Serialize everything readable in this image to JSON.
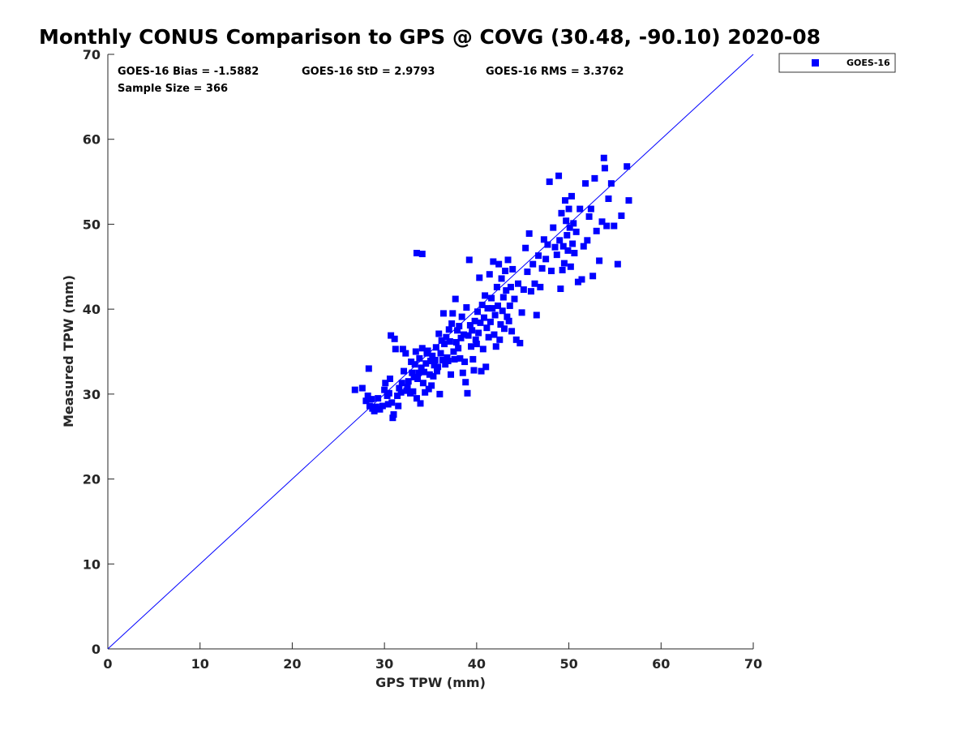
{
  "chart_data": {
    "type": "scatter",
    "title": "Monthly CONUS Comparison to GPS @ COVG (30.48, -90.10) 2020-08",
    "xlabel": "GPS TPW (mm)",
    "ylabel": "Measured TPW (mm)",
    "xlim": [
      0,
      70
    ],
    "ylim": [
      0,
      70
    ],
    "x_ticks": [
      "0",
      "10",
      "20",
      "30",
      "40",
      "50",
      "60",
      "70"
    ],
    "y_ticks": [
      "0",
      "10",
      "20",
      "30",
      "40",
      "50",
      "60",
      "70"
    ],
    "grid": false,
    "legend_position": "top-right",
    "reference_line": {
      "type": "one-to-one",
      "from": [
        0,
        0
      ],
      "to": [
        70,
        70
      ],
      "color": "#0000ff"
    },
    "stats": {
      "bias": "GOES-16 Bias = -1.5882",
      "std": "GOES-16 StD = 2.9793",
      "rms": "GOES-16 RMS = 3.3762",
      "sample_size": "Sample Size = 366"
    },
    "series": [
      {
        "name": "GOES-16",
        "color": "#0000ff",
        "marker": "square",
        "points": [
          [
            26.8,
            30.5
          ],
          [
            27.6,
            30.7
          ],
          [
            28.0,
            29.2
          ],
          [
            28.2,
            29.8
          ],
          [
            28.3,
            33.0
          ],
          [
            28.4,
            28.6
          ],
          [
            28.6,
            29.4
          ],
          [
            28.7,
            28.3
          ],
          [
            28.9,
            28.0
          ],
          [
            29.1,
            28.5
          ],
          [
            29.3,
            29.5
          ],
          [
            29.5,
            28.2
          ],
          [
            29.8,
            28.6
          ],
          [
            30.0,
            30.5
          ],
          [
            30.1,
            31.3
          ],
          [
            30.3,
            29.8
          ],
          [
            30.4,
            28.8
          ],
          [
            30.5,
            30.1
          ],
          [
            30.6,
            31.8
          ],
          [
            30.8,
            29.0
          ],
          [
            30.9,
            27.2
          ],
          [
            31.0,
            27.6
          ],
          [
            30.7,
            36.9
          ],
          [
            31.1,
            36.5
          ],
          [
            31.2,
            35.3
          ],
          [
            31.4,
            29.8
          ],
          [
            31.5,
            28.6
          ],
          [
            31.6,
            30.7
          ],
          [
            31.8,
            30.2
          ],
          [
            31.9,
            31.3
          ],
          [
            32.0,
            35.3
          ],
          [
            32.1,
            32.7
          ],
          [
            32.3,
            34.8
          ],
          [
            32.4,
            30.4
          ],
          [
            32.5,
            30.8
          ],
          [
            32.6,
            31.5
          ],
          [
            32.8,
            30.1
          ],
          [
            32.9,
            33.8
          ],
          [
            33.0,
            32.5
          ],
          [
            33.1,
            30.3
          ],
          [
            33.2,
            32.0
          ],
          [
            33.3,
            33.5
          ],
          [
            33.4,
            35.0
          ],
          [
            33.5,
            29.5
          ],
          [
            33.5,
            46.6
          ],
          [
            33.6,
            31.8
          ],
          [
            33.7,
            32.5
          ],
          [
            33.8,
            34.2
          ],
          [
            33.9,
            28.9
          ],
          [
            34.0,
            33.1
          ],
          [
            34.1,
            35.4
          ],
          [
            34.1,
            46.5
          ],
          [
            34.2,
            31.3
          ],
          [
            34.3,
            32.6
          ],
          [
            34.4,
            30.2
          ],
          [
            34.5,
            33.6
          ],
          [
            34.6,
            34.8
          ],
          [
            34.7,
            35.1
          ],
          [
            34.8,
            30.6
          ],
          [
            34.9,
            32.3
          ],
          [
            35.0,
            33.9
          ],
          [
            35.1,
            31.0
          ],
          [
            35.2,
            34.5
          ],
          [
            35.3,
            32.1
          ],
          [
            35.4,
            33.4
          ],
          [
            35.5,
            34.0
          ],
          [
            35.6,
            35.5
          ],
          [
            35.7,
            32.7
          ],
          [
            35.8,
            33.2
          ],
          [
            35.9,
            37.1
          ],
          [
            36.0,
            30.0
          ],
          [
            36.1,
            34.8
          ],
          [
            36.2,
            36.3
          ],
          [
            36.3,
            34.0
          ],
          [
            36.4,
            39.5
          ],
          [
            36.5,
            35.9
          ],
          [
            36.6,
            33.5
          ],
          [
            36.7,
            36.7
          ],
          [
            36.8,
            34.3
          ],
          [
            36.9,
            33.9
          ],
          [
            37.0,
            37.6
          ],
          [
            37.1,
            36.2
          ],
          [
            37.2,
            32.3
          ],
          [
            37.3,
            38.3
          ],
          [
            37.4,
            39.5
          ],
          [
            37.5,
            35.0
          ],
          [
            37.6,
            34.1
          ],
          [
            37.7,
            41.2
          ],
          [
            37.8,
            36.1
          ],
          [
            37.9,
            37.5
          ],
          [
            38.0,
            35.4
          ],
          [
            38.1,
            38.0
          ],
          [
            38.2,
            34.2
          ],
          [
            38.3,
            36.6
          ],
          [
            38.4,
            39.1
          ],
          [
            38.5,
            32.5
          ],
          [
            38.6,
            37.0
          ],
          [
            38.7,
            33.8
          ],
          [
            38.8,
            31.4
          ],
          [
            38.9,
            40.2
          ],
          [
            39.0,
            30.1
          ],
          [
            39.1,
            36.9
          ],
          [
            39.2,
            45.8
          ],
          [
            39.3,
            38.1
          ],
          [
            39.4,
            35.6
          ],
          [
            39.5,
            37.5
          ],
          [
            39.6,
            34.1
          ],
          [
            39.7,
            32.8
          ],
          [
            39.8,
            38.6
          ],
          [
            39.9,
            36.4
          ],
          [
            40.0,
            35.9
          ],
          [
            40.1,
            39.7
          ],
          [
            40.2,
            37.2
          ],
          [
            40.3,
            43.7
          ],
          [
            40.4,
            38.4
          ],
          [
            40.5,
            32.7
          ],
          [
            40.6,
            40.5
          ],
          [
            40.7,
            35.3
          ],
          [
            40.8,
            39.0
          ],
          [
            40.9,
            41.6
          ],
          [
            41.0,
            33.2
          ],
          [
            41.1,
            37.8
          ],
          [
            41.2,
            40.1
          ],
          [
            41.3,
            36.7
          ],
          [
            41.4,
            44.1
          ],
          [
            41.5,
            38.5
          ],
          [
            41.6,
            41.3
          ],
          [
            41.7,
            40.1
          ],
          [
            41.8,
            45.6
          ],
          [
            41.9,
            37.0
          ],
          [
            42.0,
            39.3
          ],
          [
            42.1,
            35.6
          ],
          [
            42.2,
            42.6
          ],
          [
            42.3,
            40.4
          ],
          [
            42.4,
            45.3
          ],
          [
            42.5,
            36.4
          ],
          [
            42.6,
            38.2
          ],
          [
            42.7,
            43.6
          ],
          [
            42.8,
            39.8
          ],
          [
            42.9,
            41.4
          ],
          [
            43.0,
            37.7
          ],
          [
            43.1,
            44.5
          ],
          [
            43.2,
            42.2
          ],
          [
            43.3,
            39.1
          ],
          [
            43.4,
            45.8
          ],
          [
            43.5,
            38.6
          ],
          [
            43.6,
            40.4
          ],
          [
            43.7,
            42.6
          ],
          [
            43.8,
            37.4
          ],
          [
            43.9,
            44.7
          ],
          [
            44.1,
            41.2
          ],
          [
            44.3,
            36.4
          ],
          [
            44.5,
            43.0
          ],
          [
            44.7,
            36.0
          ],
          [
            44.9,
            39.6
          ],
          [
            45.1,
            42.3
          ],
          [
            45.3,
            47.2
          ],
          [
            45.5,
            44.4
          ],
          [
            45.7,
            48.9
          ],
          [
            45.9,
            42.1
          ],
          [
            46.1,
            45.3
          ],
          [
            46.3,
            43.0
          ],
          [
            46.5,
            39.3
          ],
          [
            46.7,
            46.3
          ],
          [
            46.9,
            42.6
          ],
          [
            47.1,
            44.8
          ],
          [
            47.3,
            48.2
          ],
          [
            47.5,
            45.9
          ],
          [
            47.7,
            47.6
          ],
          [
            47.9,
            55.0
          ],
          [
            48.1,
            44.5
          ],
          [
            48.3,
            49.6
          ],
          [
            48.5,
            47.3
          ],
          [
            48.7,
            46.4
          ],
          [
            48.9,
            55.7
          ],
          [
            49.0,
            48.1
          ],
          [
            49.1,
            42.4
          ],
          [
            49.2,
            51.3
          ],
          [
            49.3,
            44.6
          ],
          [
            49.4,
            47.4
          ],
          [
            49.5,
            45.4
          ],
          [
            49.6,
            52.8
          ],
          [
            49.7,
            50.4
          ],
          [
            49.8,
            48.7
          ],
          [
            49.9,
            46.9
          ],
          [
            50.0,
            51.8
          ],
          [
            50.1,
            49.6
          ],
          [
            50.2,
            45.0
          ],
          [
            50.3,
            53.3
          ],
          [
            50.4,
            47.7
          ],
          [
            50.5,
            50.1
          ],
          [
            50.6,
            46.6
          ],
          [
            50.8,
            49.1
          ],
          [
            51.0,
            43.2
          ],
          [
            51.2,
            51.8
          ],
          [
            51.4,
            43.5
          ],
          [
            51.6,
            47.4
          ],
          [
            51.8,
            54.8
          ],
          [
            52.0,
            48.1
          ],
          [
            52.2,
            50.9
          ],
          [
            52.4,
            51.8
          ],
          [
            52.6,
            43.9
          ],
          [
            52.8,
            55.4
          ],
          [
            53.0,
            49.2
          ],
          [
            53.3,
            45.7
          ],
          [
            53.6,
            50.3
          ],
          [
            53.8,
            57.8
          ],
          [
            53.9,
            56.6
          ],
          [
            54.1,
            49.8
          ],
          [
            54.3,
            53.0
          ],
          [
            54.6,
            54.8
          ],
          [
            54.9,
            49.8
          ],
          [
            55.3,
            45.3
          ],
          [
            55.7,
            51.0
          ],
          [
            56.3,
            56.8
          ],
          [
            56.5,
            52.8
          ]
        ]
      }
    ]
  }
}
